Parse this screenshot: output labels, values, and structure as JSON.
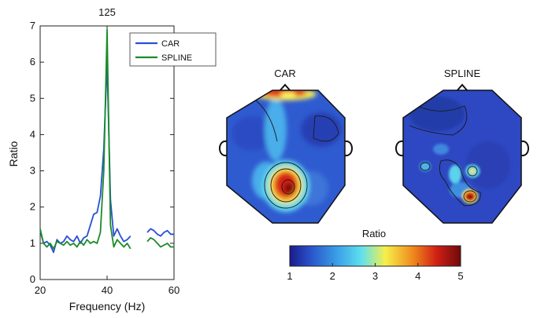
{
  "chart_data": [
    {
      "type": "line",
      "title": "125",
      "xlabel": "Frequency (Hz)",
      "ylabel": "Ratio",
      "xlim": [
        20,
        60
      ],
      "ylim": [
        0,
        7
      ],
      "xticks": [
        20,
        40,
        60
      ],
      "yticks": [
        0,
        1,
        2,
        3,
        4,
        5,
        6,
        7
      ],
      "legend_position": "top-right",
      "series": [
        {
          "name": "CAR",
          "color": "#2a4fd6",
          "segments": [
            [
              [
                20,
                1.35
              ],
              [
                21,
                1.0
              ],
              [
                22,
                1.05
              ],
              [
                23,
                0.95
              ],
              [
                24,
                0.75
              ],
              [
                25,
                1.1
              ],
              [
                26,
                1.0
              ],
              [
                27,
                1.05
              ],
              [
                28,
                1.2
              ],
              [
                29,
                1.1
              ],
              [
                30,
                1.05
              ],
              [
                31,
                1.2
              ],
              [
                32,
                1.0
              ],
              [
                33,
                1.15
              ],
              [
                34,
                1.2
              ],
              [
                35,
                1.5
              ],
              [
                36,
                1.8
              ],
              [
                37,
                1.85
              ],
              [
                38,
                2.3
              ],
              [
                39,
                3.6
              ],
              [
                40,
                6.0
              ],
              [
                41,
                2.2
              ],
              [
                42,
                1.2
              ],
              [
                43,
                1.4
              ],
              [
                44,
                1.2
              ],
              [
                45,
                1.05
              ],
              [
                46,
                1.1
              ],
              [
                47,
                1.2
              ]
            ],
            [
              [
                52,
                1.3
              ],
              [
                53,
                1.4
              ],
              [
                54,
                1.35
              ],
              [
                55,
                1.25
              ],
              [
                56,
                1.2
              ],
              [
                57,
                1.3
              ],
              [
                58,
                1.35
              ],
              [
                59,
                1.25
              ],
              [
                60,
                1.25
              ]
            ]
          ]
        },
        {
          "name": "SPLINE",
          "color": "#1a8c2a",
          "segments": [
            [
              [
                20,
                1.4
              ],
              [
                21,
                1.0
              ],
              [
                22,
                0.9
              ],
              [
                23,
                1.0
              ],
              [
                24,
                0.85
              ],
              [
                25,
                1.05
              ],
              [
                26,
                1.0
              ],
              [
                27,
                0.95
              ],
              [
                28,
                1.05
              ],
              [
                29,
                0.95
              ],
              [
                30,
                1.0
              ],
              [
                31,
                0.9
              ],
              [
                32,
                1.05
              ],
              [
                33,
                0.95
              ],
              [
                34,
                1.1
              ],
              [
                35,
                1.0
              ],
              [
                36,
                1.05
              ],
              [
                37,
                1.0
              ],
              [
                38,
                1.3
              ],
              [
                39,
                3.0
              ],
              [
                40,
                6.9
              ],
              [
                41,
                1.5
              ],
              [
                42,
                0.9
              ],
              [
                43,
                1.1
              ],
              [
                44,
                1.0
              ],
              [
                45,
                0.9
              ],
              [
                46,
                1.0
              ],
              [
                47,
                0.85
              ]
            ],
            [
              [
                52,
                1.05
              ],
              [
                53,
                1.15
              ],
              [
                54,
                1.1
              ],
              [
                55,
                1.0
              ],
              [
                56,
                0.9
              ],
              [
                57,
                0.95
              ],
              [
                58,
                1.0
              ],
              [
                59,
                0.9
              ],
              [
                60,
                0.9
              ]
            ]
          ]
        }
      ]
    },
    {
      "type": "heatmap",
      "subtype": "scalp-topography",
      "titles": [
        "CAR",
        "SPLINE"
      ],
      "colorbar": {
        "label": "Ratio",
        "range": [
          1,
          5
        ],
        "ticks": [
          1,
          2,
          3,
          4,
          5
        ],
        "colormap": [
          "#1a1a8c",
          "#2a52c9",
          "#3aa0e8",
          "#5fe0ee",
          "#f5f04a",
          "#f08a1e",
          "#d01f14",
          "#6e0a0a"
        ]
      },
      "maps": [
        {
          "name": "CAR",
          "hotspots": [
            {
              "location": "frontal",
              "value": 4.8
            },
            {
              "location": "central-posterior",
              "value": 5.0
            }
          ]
        },
        {
          "name": "SPLINE",
          "hotspots": [
            {
              "location": "posterior",
              "value": 5.0
            },
            {
              "location": "posterior-right",
              "value": 3.0
            }
          ]
        }
      ]
    }
  ]
}
